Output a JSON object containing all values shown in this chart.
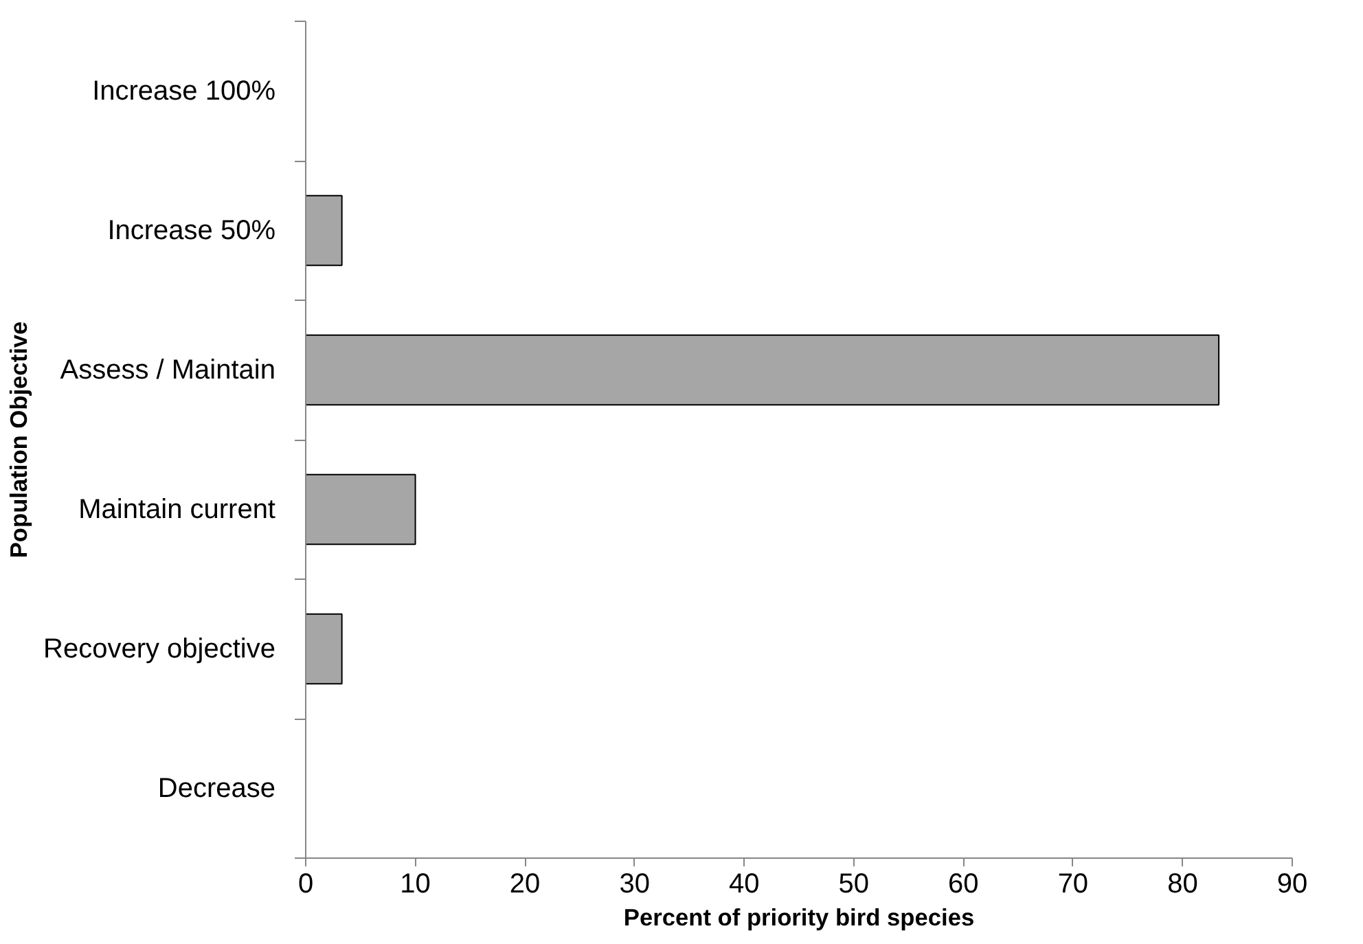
{
  "chart_data": {
    "type": "bar",
    "orientation": "horizontal",
    "xlabel": "Percent of priority bird species",
    "ylabel": "Population Objective",
    "categories": [
      "Increase 100%",
      "Increase 50%",
      "Assess / Maintain",
      "Maintain current",
      "Recovery objective",
      "Decrease"
    ],
    "values": [
      0,
      3.3,
      83.3,
      10,
      3.3,
      0
    ],
    "color": "#a6a6a6",
    "xlim": [
      0,
      90
    ],
    "xticks": [
      0,
      10,
      20,
      30,
      40,
      50,
      60,
      70,
      80,
      90
    ],
    "grid": false
  }
}
